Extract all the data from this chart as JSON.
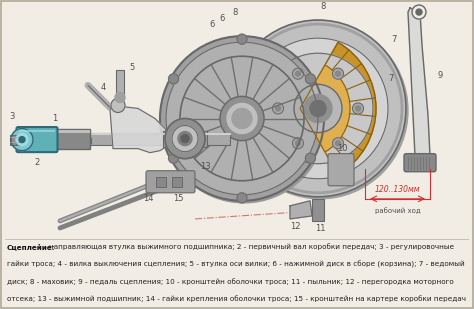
{
  "background_color": "#f2ede4",
  "caption_bold": "Сцепление:",
  "caption_text": " 1 - направляющая втулка выжимного подшипника; 2 - первичный вал коробки передач; 3 - регулировочные гайки троса; 4 - вилка выключения сцепления; 5 - втулка оси вилки; 6 - нажимной диск в сборе (корзина); 7 - ведомый диск; 8 - маховик; 9 - педаль сцепления; 10 - кронштейн оболочки троса; 11 - пыльник; 12 - перегородка моторного отсека; 13 - выжимной подшипник; 14 - гайки крепления оболочки троса; 15 - кронштейн на картере коробки передач",
  "caption_fontsize": 5.2,
  "fig_width": 4.74,
  "fig_height": 3.09,
  "dpi": 100,
  "annotation_120_130": "120..130мм",
  "annotation_rabochiy_khod": "рабочий ход",
  "border_color": "#b0a898"
}
